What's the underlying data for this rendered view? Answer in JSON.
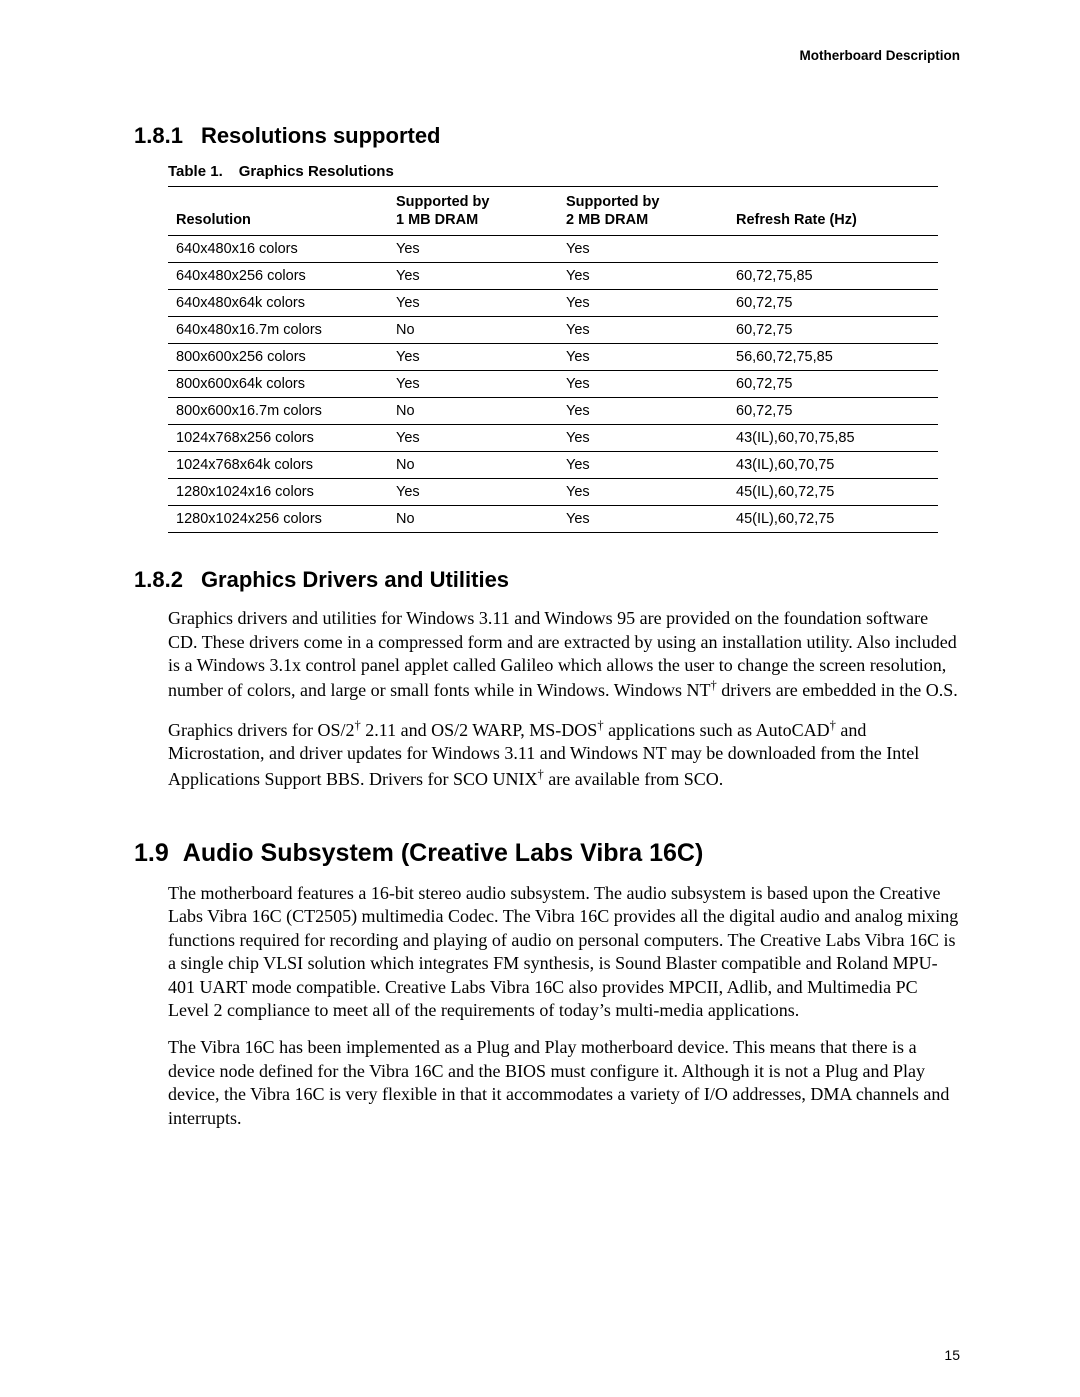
{
  "header": {
    "running_title": "Motherboard Description"
  },
  "section_181": {
    "number": "1.8.1",
    "title": "Resolutions supported",
    "table": {
      "caption_label": "Table 1.",
      "caption_title": "Graphics Resolutions",
      "columns": {
        "resolution": "Resolution",
        "supported_by_line": "Supported by",
        "col_1mb": "1 MB DRAM",
        "col_2mb": "2 MB DRAM",
        "refresh": "Refresh Rate (Hz)"
      },
      "rows": [
        {
          "res": "640x480x16 colors",
          "mb1": "Yes",
          "mb2": "Yes",
          "rr": ""
        },
        {
          "res": "640x480x256 colors",
          "mb1": "Yes",
          "mb2": "Yes",
          "rr": "60,72,75,85"
        },
        {
          "res": "640x480x64k colors",
          "mb1": "Yes",
          "mb2": "Yes",
          "rr": "60,72,75"
        },
        {
          "res": "640x480x16.7m colors",
          "mb1": "No",
          "mb2": "Yes",
          "rr": "60,72,75"
        },
        {
          "res": "800x600x256 colors",
          "mb1": "Yes",
          "mb2": "Yes",
          "rr": "56,60,72,75,85"
        },
        {
          "res": "800x600x64k colors",
          "mb1": "Yes",
          "mb2": "Yes",
          "rr": "60,72,75"
        },
        {
          "res": "800x600x16.7m colors",
          "mb1": "No",
          "mb2": "Yes",
          "rr": "60,72,75"
        },
        {
          "res": "1024x768x256 colors",
          "mb1": "Yes",
          "mb2": "Yes",
          "rr": "43(IL),60,70,75,85"
        },
        {
          "res": "1024x768x64k colors",
          "mb1": "No",
          "mb2": "Yes",
          "rr": "43(IL),60,70,75"
        },
        {
          "res": "1280x1024x16 colors",
          "mb1": "Yes",
          "mb2": "Yes",
          "rr": "45(IL),60,72,75"
        },
        {
          "res": "1280x1024x256 colors",
          "mb1": "No",
          "mb2": "Yes",
          "rr": "45(IL),60,72,75"
        }
      ]
    }
  },
  "section_182": {
    "number": "1.8.2",
    "title": "Graphics Drivers and Utilities",
    "para1_html": "Graphics drivers and utilities for Windows 3.11 and Windows 95 are provided on the foundation software CD.  These drivers come in a compressed form and are extracted by using an installation utility.  Also included is a Windows 3.1x control panel applet called Galileo which allows the user to change the screen resolution, number of colors, and large or small fonts while in Windows.  Windows NT<sup>†</sup> drivers are embedded in the O.S.",
    "para2_html": "Graphics drivers for OS/2<sup>†</sup> 2.11 and OS/2 WARP, MS-DOS<sup>†</sup> applications such as AutoCAD<sup>†</sup> and Microstation, and driver updates for Windows 3.11 and Windows NT may be downloaded from the Intel Applications Support BBS.  Drivers for SCO UNIX<sup>†</sup> are available from SCO."
  },
  "section_19": {
    "number": "1.9",
    "title": "Audio Subsystem (Creative Labs Vibra 16C)",
    "para1": "The  motherboard features a 16-bit stereo audio subsystem.  The audio subsystem is based upon the Creative Labs Vibra 16C (CT2505) multimedia Codec.  The Vibra 16C provides all the digital audio and analog mixing functions required for recording and playing of audio on personal computers.  The Creative Labs Vibra 16C is a single chip VLSI solution which integrates FM synthesis, is Sound Blaster compatible and Roland MPU-401 UART mode compatible.  Creative Labs Vibra 16C also provides MPCII, Adlib, and Multimedia PC Level 2 compliance to meet all of the requirements of today’s multi-media applications.",
    "para2": "The Vibra 16C has been implemented as a Plug and Play motherboard device.  This means that there is a device node defined for the Vibra 16C and the BIOS must configure it.  Although it is not a Plug and Play device, the Vibra 16C is very flexible in that it accommodates a variety of I/O addresses, DMA channels and interrupts."
  },
  "page_number": "15"
}
